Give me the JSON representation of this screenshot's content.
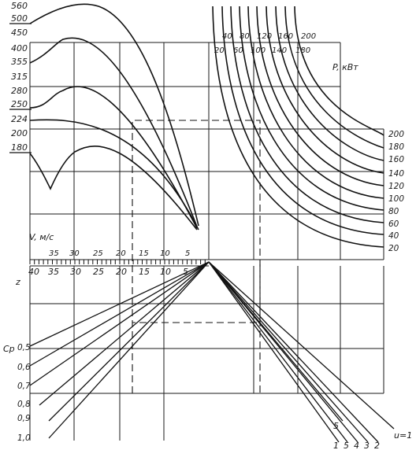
{
  "chart_data": {
    "type": "nomogram",
    "left_scale_labels": [
      "560",
      "500",
      "450",
      "400",
      "355",
      "315",
      "280",
      "250",
      "224",
      "200",
      "180"
    ],
    "power_label": "P, кВт",
    "power_top_row1": [
      "40",
      "80",
      "120",
      "160",
      "200"
    ],
    "power_top_row2": [
      "20",
      "60",
      "100",
      "140",
      "180"
    ],
    "power_right": [
      "200",
      "180",
      "160",
      "140",
      "120",
      "100",
      "80",
      "60",
      "40",
      "20"
    ],
    "velocity_label": "V, м/с",
    "velocity_top": [
      "35",
      "30",
      "25",
      "20",
      "15",
      "10",
      "5"
    ],
    "velocity_bottom": [
      "40",
      "35",
      "30",
      "25",
      "20",
      "15",
      "10",
      "5"
    ],
    "z_label": "z",
    "cp_label": "Cp",
    "cp_values": [
      "0,5",
      "0,6",
      "0,7",
      "0,8",
      "0,9",
      "1,0"
    ],
    "u_label": "u=1",
    "u_values": [
      "1",
      "5",
      "4",
      "3",
      "2"
    ],
    "u_extra": "5"
  }
}
